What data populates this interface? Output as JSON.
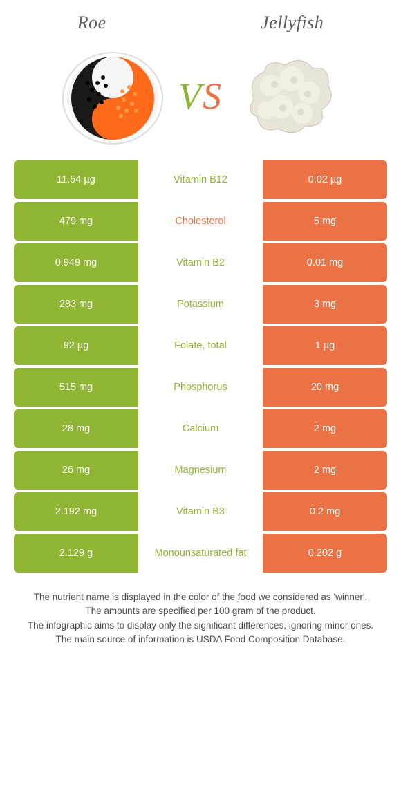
{
  "colors": {
    "left": "#8fb533",
    "right": "#eb7245",
    "mid_left_text": "#8fb533",
    "mid_right_text": "#eb7245",
    "header_text": "#5a5a5a",
    "footer_text": "#4a4a4a",
    "background": "#ffffff"
  },
  "header": {
    "left": "Roe",
    "right": "Jellyfish"
  },
  "vs": {
    "v": "V",
    "s": "S"
  },
  "rows": [
    {
      "left": "11.54 µg",
      "label": "Vitamin B12",
      "right": "0.02 µg",
      "winner": "left"
    },
    {
      "left": "479 mg",
      "label": "Cholesterol",
      "right": "5 mg",
      "winner": "right"
    },
    {
      "left": "0.949 mg",
      "label": "Vitamin B2",
      "right": "0.01 mg",
      "winner": "left"
    },
    {
      "left": "283 mg",
      "label": "Potassium",
      "right": "3 mg",
      "winner": "left"
    },
    {
      "left": "92 µg",
      "label": "Folate, total",
      "right": "1 µg",
      "winner": "left"
    },
    {
      "left": "515 mg",
      "label": "Phosphorus",
      "right": "20 mg",
      "winner": "left"
    },
    {
      "left": "28 mg",
      "label": "Calcium",
      "right": "2 mg",
      "winner": "left"
    },
    {
      "left": "26 mg",
      "label": "Magnesium",
      "right": "2 mg",
      "winner": "left"
    },
    {
      "left": "2.192 mg",
      "label": "Vitamin B3",
      "right": "0.2 mg",
      "winner": "left"
    },
    {
      "left": "2.129 g",
      "label": "Monounsaturated fat",
      "right": "0.202 g",
      "winner": "left"
    }
  ],
  "footer": {
    "l1": "The nutrient name is displayed in the color of the food we considered as 'winner'.",
    "l2": "The amounts are specified per 100 gram of the product.",
    "l3": "The infographic aims to display only the significant differences, ignoring minor ones.",
    "l4": "The main source of information is USDA Food Composition Database."
  }
}
